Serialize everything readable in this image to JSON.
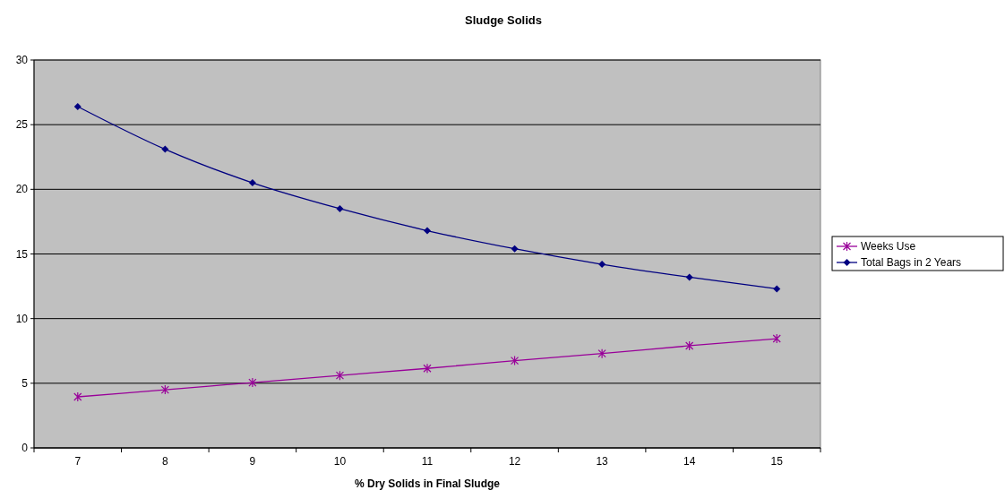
{
  "chart_data": {
    "type": "line",
    "title": "Sludge Solids",
    "xlabel": "% Dry Solids in Final Sludge",
    "categories": [
      "7",
      "8",
      "9",
      "10",
      "11",
      "12",
      "13",
      "14",
      "15"
    ],
    "series": [
      {
        "name": "Weeks Use",
        "color": "#990099",
        "marker": "cross",
        "values": [
          3.95,
          4.5,
          5.05,
          5.6,
          6.15,
          6.75,
          7.3,
          7.9,
          8.45
        ]
      },
      {
        "name": "Total Bags in 2 Years",
        "color": "#000080",
        "marker": "diamond",
        "values": [
          26.4,
          23.1,
          20.5,
          18.5,
          16.8,
          15.4,
          14.2,
          13.2,
          12.3
        ]
      }
    ],
    "ylim": [
      0,
      30
    ],
    "yticks": [
      0,
      5,
      10,
      15,
      20,
      25,
      30
    ],
    "grid": "y",
    "legend": "right"
  }
}
